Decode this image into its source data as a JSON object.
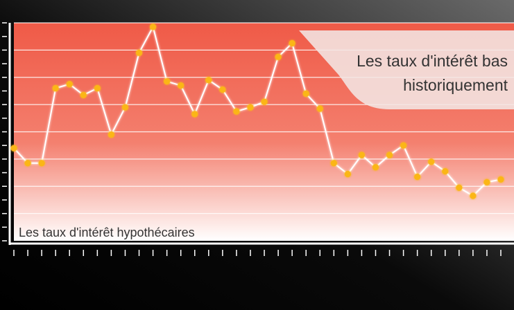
{
  "title_callout": {
    "line1": "Les taux d'intérêt bas",
    "line2": "historiquement"
  },
  "chart_label": "Les taux d'intérêt hypothécaires",
  "colors": {
    "background_dark": "#000000",
    "background_light": "#6a6a6a",
    "plot_top": "#ef5a47",
    "plot_bottom": "#ffffff",
    "line": "#ffffff",
    "marker": "#fbb617",
    "gridline": "#ffffff",
    "callout_fill": "#f3e6e4",
    "text": "#333333"
  },
  "chart_data": {
    "type": "line",
    "title": "Les taux d'intérêt hypothécaires",
    "xlabel": "",
    "ylabel": "",
    "grid": true,
    "ylim": [
      0,
      16
    ],
    "y_grid_step": 2,
    "x_tick_count": 36,
    "series": [
      {
        "values": [
          6.8,
          5.7,
          5.7,
          11.2,
          11.5,
          10.7,
          11.2,
          7.8,
          9.8,
          13.8,
          15.7,
          11.7,
          11.4,
          9.3,
          11.8,
          11.1,
          9.5,
          9.8,
          10.2,
          13.5,
          14.5,
          10.8,
          9.7,
          5.7,
          4.9,
          6.3,
          5.4,
          6.3,
          7.0,
          4.7,
          5.8,
          5.1,
          3.9,
          3.3,
          4.3,
          4.5
        ]
      }
    ]
  }
}
